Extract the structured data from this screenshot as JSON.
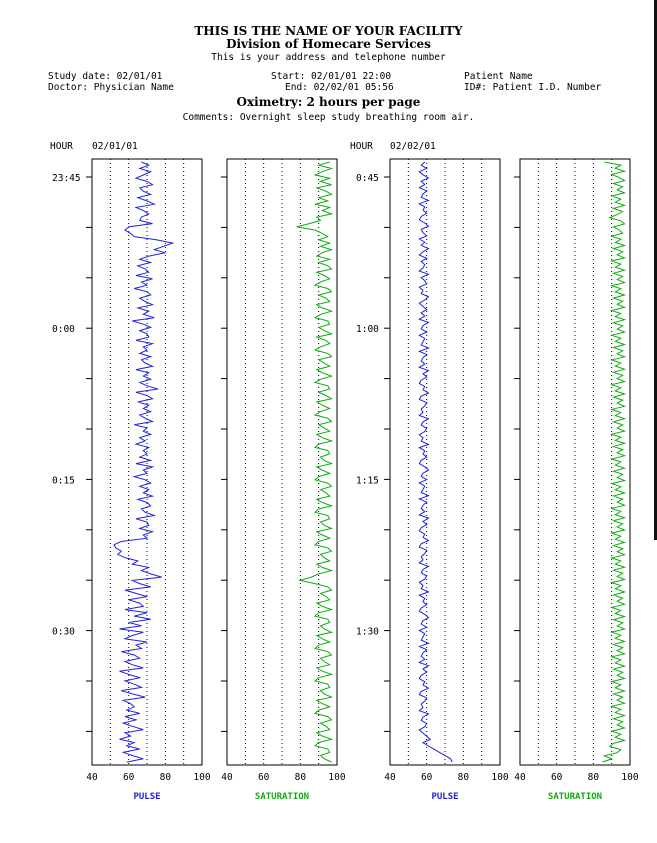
{
  "header": {
    "facility": "THIS IS THE NAME OF YOUR FACILITY",
    "division": "Division of Homecare Services",
    "address": "This is your address and telephone number"
  },
  "study": {
    "study_date": "Study date: 02/01/01",
    "doctor": "Doctor: Physician Name",
    "start": "Start: 02/01/01 22:00",
    "end": "End: 02/02/01 05:56",
    "patient_name": "Patient Name",
    "patient_id": "ID#: Patient I.D. Number",
    "chart_title": "Oximetry: 2 hours per page",
    "comments": "Comments: Overnight sleep study breathing room air."
  },
  "colors": {
    "pulse": "#2222dd",
    "saturation": "#11aa11",
    "grid": "#000000"
  },
  "chart_data": [
    {
      "type": "line",
      "hour_label": "HOUR",
      "date_label": "02/01/01",
      "time_labels": [
        "23:45",
        "0:00",
        "0:15",
        "0:30"
      ],
      "time_range": [
        "23:43",
        "0:43"
      ],
      "panels": [
        {
          "name": "PULSE",
          "xlim": [
            40,
            100
          ],
          "ticks": [
            "40",
            "60",
            "80",
            "100"
          ],
          "gridlines": [
            50,
            60,
            70,
            80,
            90
          ],
          "values": [
            67,
            71,
            66,
            72,
            68,
            64,
            70,
            73,
            66,
            68,
            72,
            65,
            70,
            74,
            64,
            68,
            71,
            67,
            66,
            73,
            60,
            58,
            61,
            63,
            75,
            84,
            79,
            74,
            80,
            71,
            66,
            72,
            65,
            69,
            71,
            64,
            73,
            67,
            70,
            63,
            70,
            72,
            66,
            69,
            73,
            65,
            71,
            68,
            74,
            62,
            68,
            72,
            66,
            70,
            71,
            64,
            73,
            68,
            70,
            66,
            72,
            67,
            69,
            73,
            64,
            71,
            68,
            72,
            66,
            70,
            76,
            64,
            70,
            73,
            65,
            71,
            68,
            72,
            66,
            69,
            73,
            63,
            70,
            68,
            72,
            66,
            69,
            64,
            71,
            68,
            70,
            66,
            72,
            64,
            73,
            68,
            70,
            63,
            69,
            72,
            66,
            71,
            68,
            73,
            65,
            70,
            72,
            67,
            69,
            74,
            64,
            70,
            71,
            66,
            73,
            68,
            70,
            56,
            52,
            53,
            56,
            54,
            58,
            65,
            62,
            71,
            67,
            72,
            78,
            62,
            66,
            72,
            58,
            64,
            70,
            60,
            66,
            68,
            58,
            70,
            63,
            72,
            60,
            67,
            55,
            68,
            62,
            58,
            70,
            64,
            67,
            56,
            63,
            66,
            58,
            62,
            68,
            55,
            60,
            66,
            58,
            63,
            67,
            56,
            62,
            69,
            57,
            61,
            63,
            59,
            66,
            58,
            64,
            57,
            62,
            68,
            58,
            61,
            55,
            63,
            59,
            66,
            57,
            62,
            68,
            59
          ]
        },
        {
          "name": "SATURATION",
          "xlim": [
            40,
            100
          ],
          "ticks": [
            "40",
            "60",
            "80",
            "100"
          ],
          "gridlines": [
            50,
            60,
            70,
            80,
            90
          ],
          "values": [
            96,
            90,
            97,
            92,
            88,
            96,
            91,
            97,
            89,
            94,
            97,
            90,
            95,
            88,
            96,
            92,
            97,
            89,
            91,
            85,
            78,
            88,
            92,
            95,
            90,
            96,
            91,
            97,
            92,
            89,
            96,
            90,
            95,
            97,
            89,
            93,
            96,
            91,
            88,
            95,
            97,
            90,
            94,
            96,
            89,
            92,
            97,
            91,
            88,
            95,
            96,
            90,
            93,
            97,
            89,
            94,
            96,
            91,
            88,
            95,
            97,
            90,
            93,
            96,
            89,
            92,
            97,
            91,
            88,
            95,
            96,
            90,
            94,
            97,
            89,
            92,
            96,
            91,
            88,
            95,
            97,
            90,
            93,
            96,
            89,
            92,
            97,
            90,
            88,
            95,
            96,
            91,
            93,
            97,
            89,
            92,
            96,
            90,
            88,
            95,
            97,
            91,
            94,
            96,
            89,
            92,
            97,
            90,
            88,
            95,
            96,
            91,
            93,
            97,
            89,
            92,
            96,
            90,
            88,
            95,
            97,
            91,
            93,
            96,
            89,
            92,
            97,
            90,
            86,
            80,
            88,
            95,
            97,
            91,
            94,
            96,
            89,
            92,
            97,
            90,
            88,
            95,
            96,
            91,
            93,
            97,
            89,
            92,
            96,
            90,
            88,
            95,
            97,
            91,
            93,
            96,
            89,
            92,
            97,
            90,
            88,
            95,
            96,
            91,
            93,
            97,
            89,
            92,
            96,
            90,
            88,
            95,
            97,
            91,
            94,
            96,
            89,
            92,
            97,
            90,
            88,
            95,
            96,
            91,
            93,
            97
          ]
        }
      ]
    },
    {
      "type": "line",
      "hour_label": "HOUR",
      "date_label": "02/02/01",
      "time_labels": [
        "0:45",
        "1:00",
        "1:15",
        "1:30"
      ],
      "time_range": [
        "0:43",
        "1:43"
      ],
      "panels": [
        {
          "name": "PULSE",
          "xlim": [
            40,
            100
          ],
          "ticks": [
            "40",
            "60",
            "80",
            "100"
          ],
          "gridlines": [
            50,
            60,
            70,
            80,
            90
          ],
          "values": [
            59,
            57,
            60,
            56,
            58,
            61,
            57,
            59,
            56,
            60,
            58,
            57,
            61,
            56,
            59,
            58,
            60,
            57,
            56,
            59,
            61,
            57,
            58,
            60,
            56,
            59,
            57,
            61,
            58,
            56,
            60,
            57,
            59,
            58,
            56,
            61,
            57,
            59,
            60,
            56,
            58,
            57,
            61,
            59,
            56,
            58,
            60,
            57,
            59,
            56,
            61,
            58,
            57,
            60,
            56,
            59,
            58,
            57,
            61,
            56,
            60,
            58,
            57,
            59,
            56,
            61,
            58,
            60,
            57,
            56,
            59,
            58,
            61,
            57,
            56,
            60,
            59,
            57,
            58,
            56,
            61,
            58,
            57,
            60,
            59,
            56,
            58,
            57,
            61,
            56,
            59,
            58,
            60,
            57,
            56,
            59,
            61,
            58,
            57,
            60,
            56,
            59,
            58,
            57,
            61,
            56,
            60,
            58,
            57,
            59,
            56,
            61,
            58,
            60,
            57,
            56,
            59,
            58,
            61,
            57,
            56,
            60,
            59,
            57,
            58,
            56,
            61,
            58,
            57,
            60,
            59,
            56,
            58,
            57,
            61,
            56,
            59,
            58,
            60,
            57,
            56,
            59,
            61,
            58,
            57,
            60,
            56,
            59,
            58,
            57,
            61,
            56,
            60,
            58,
            57,
            59,
            56,
            61,
            58,
            60,
            57,
            56,
            59,
            58,
            61,
            57,
            56,
            60,
            59,
            57,
            58,
            56,
            61,
            58,
            57,
            60,
            59,
            56,
            58,
            60,
            62,
            58,
            61,
            64,
            67,
            70,
            73,
            74
          ]
        },
        {
          "name": "SATURATION",
          "xlim": [
            40,
            100
          ],
          "ticks": [
            "40",
            "60",
            "80",
            "100"
          ],
          "gridlines": [
            50,
            60,
            70,
            80,
            90
          ],
          "values": [
            86,
            95,
            92,
            97,
            90,
            94,
            97,
            91,
            96,
            93,
            97,
            90,
            95,
            92,
            97,
            91,
            96,
            93,
            89,
            95,
            97,
            91,
            94,
            96,
            90,
            95,
            92,
            97,
            91,
            96,
            93,
            97,
            90,
            95,
            92,
            97,
            91,
            96,
            93,
            97,
            90,
            95,
            92,
            97,
            91,
            96,
            93,
            97,
            90,
            95,
            92,
            97,
            91,
            96,
            93,
            97,
            90,
            95,
            92,
            97,
            91,
            96,
            93,
            97,
            90,
            95,
            92,
            97,
            91,
            96,
            93,
            97,
            90,
            95,
            92,
            97,
            91,
            96,
            93,
            97,
            90,
            95,
            92,
            97,
            91,
            96,
            93,
            97,
            90,
            95,
            92,
            97,
            91,
            96,
            93,
            97,
            90,
            95,
            92,
            97,
            91,
            96,
            93,
            97,
            90,
            95,
            92,
            97,
            91,
            96,
            93,
            97,
            90,
            95,
            92,
            97,
            91,
            96,
            93,
            97,
            90,
            95,
            92,
            97,
            91,
            96,
            93,
            97,
            90,
            95,
            92,
            97,
            91,
            96,
            93,
            97,
            90,
            95,
            92,
            97,
            91,
            96,
            93,
            97,
            90,
            95,
            92,
            97,
            91,
            96,
            93,
            97,
            90,
            95,
            92,
            97,
            91,
            96,
            93,
            97,
            90,
            95,
            92,
            97,
            91,
            96,
            93,
            97,
            90,
            95,
            92,
            97,
            91,
            96,
            93,
            97,
            90,
            95,
            92,
            97,
            91,
            96,
            93,
            97,
            90,
            95,
            92,
            97,
            91,
            89,
            95,
            93,
            86,
            90,
            85
          ]
        }
      ]
    }
  ]
}
